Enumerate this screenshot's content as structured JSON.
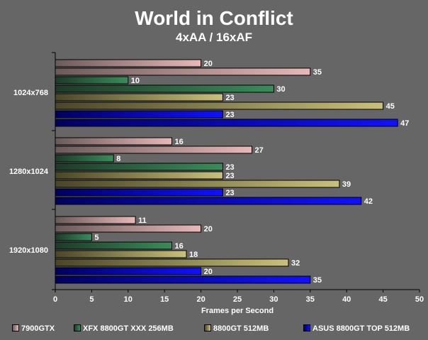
{
  "chart_data": {
    "type": "bar",
    "orientation": "horizontal",
    "title": "World in Conflict",
    "subtitle": "4xAA / 16xAF",
    "xlabel": "Frames per Second",
    "ylabel": "",
    "xlim": [
      0,
      50
    ],
    "x_ticks": [
      0,
      5,
      10,
      15,
      20,
      25,
      30,
      35,
      40,
      45,
      50
    ],
    "categories": [
      "1024x768",
      "1280x1024",
      "1920x1080"
    ],
    "series": [
      {
        "name": "7900GTX",
        "values": [
          [
            20,
            35
          ],
          [
            16,
            27
          ],
          [
            11,
            20
          ]
        ],
        "color": "#e8b8b8"
      },
      {
        "name": "XFX 8800GT XXX 256MB",
        "values": [
          [
            10,
            30
          ],
          [
            8,
            23
          ],
          [
            5,
            16
          ]
        ],
        "color": "#3a8c5a"
      },
      {
        "name": "8800GT 512MB",
        "values": [
          [
            23,
            45
          ],
          [
            23,
            39
          ],
          [
            18,
            32
          ]
        ],
        "color": "#c8c07a"
      },
      {
        "name": "ASUS 8800GT TOP 512MB",
        "values": [
          [
            23,
            47
          ],
          [
            23,
            42
          ],
          [
            20,
            35
          ]
        ],
        "color": "#1010ff"
      }
    ],
    "grid": false,
    "legend_position": "bottom"
  }
}
